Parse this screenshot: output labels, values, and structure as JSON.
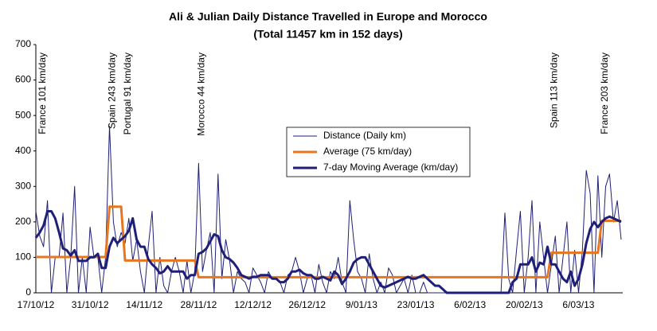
{
  "chart_data": {
    "type": "line",
    "title": "Ali & Julian Daily Distance Travelled in Europe and Morocco",
    "subtitle": "(Total 11457 km in 152 days)",
    "categories": [
      "17/10/12",
      null,
      null,
      null,
      null,
      null,
      null,
      null,
      null,
      null,
      null,
      null,
      null,
      null,
      "31/10/12",
      null,
      null,
      null,
      null,
      null,
      null,
      null,
      null,
      null,
      null,
      null,
      null,
      null,
      "14/11/12",
      null,
      null,
      null,
      null,
      null,
      null,
      null,
      null,
      null,
      null,
      null,
      null,
      null,
      "28/11/12",
      null,
      null,
      null,
      null,
      null,
      null,
      null,
      null,
      null,
      null,
      null,
      null,
      null,
      "12/12/12",
      null,
      null,
      null,
      null,
      null,
      null,
      null,
      null,
      null,
      null,
      null,
      null,
      null,
      "26/12/12",
      null,
      null,
      null,
      null,
      null,
      null,
      null,
      null,
      null,
      null,
      null,
      null,
      null,
      "9/01/13",
      null,
      null,
      null,
      null,
      null,
      null,
      null,
      null,
      null,
      null,
      null,
      null,
      null,
      "23/01/13",
      null,
      null,
      null,
      null,
      null,
      null,
      null,
      null,
      null,
      null,
      null,
      null,
      null,
      "6/02/13",
      null,
      null,
      null,
      null,
      null,
      null,
      null,
      null,
      null,
      null,
      null,
      null,
      null,
      "20/02/13",
      null,
      null,
      null,
      null,
      null,
      null,
      null,
      null,
      null,
      null,
      null,
      null,
      null,
      "6/03/13",
      null,
      null,
      null,
      null,
      null,
      null,
      null,
      null,
      null,
      null,
      null
    ],
    "series": [
      {
        "name": "Distance (Daily km)",
        "color": "#1f1f78",
        "width": 1,
        "values": [
          230,
          160,
          130,
          260,
          0,
          100,
          100,
          225,
          0,
          100,
          300,
          0,
          100,
          0,
          185,
          100,
          100,
          0,
          100,
          470,
          200,
          130,
          170,
          140,
          210,
          90,
          150,
          60,
          0,
          130,
          230,
          0,
          100,
          20,
          0,
          60,
          100,
          60,
          0,
          90,
          0,
          60,
          365,
          60,
          120,
          170,
          0,
          335,
          40,
          150,
          90,
          0,
          60,
          40,
          30,
          0,
          70,
          50,
          30,
          0,
          60,
          40,
          40,
          30,
          0,
          50,
          60,
          100,
          60,
          0,
          40,
          50,
          0,
          80,
          30,
          0,
          60,
          40,
          100,
          30,
          0,
          260,
          150,
          60,
          40,
          0,
          110,
          40,
          0,
          30,
          0,
          70,
          50,
          0,
          20,
          40,
          0,
          50,
          0,
          0,
          30,
          0,
          0,
          0,
          0,
          0,
          0,
          0,
          0,
          0,
          0,
          0,
          0,
          0,
          0,
          0,
          0,
          0,
          0,
          0,
          0,
          225,
          40,
          0,
          120,
          230,
          0,
          100,
          260,
          0,
          200,
          100,
          0,
          80,
          160,
          0,
          100,
          200,
          0,
          120,
          0,
          120,
          345,
          280,
          0,
          330,
          100,
          300,
          335,
          200,
          260,
          150
        ]
      },
      {
        "name": "Average (75 km/day)",
        "color": "#e8761e",
        "width": 3,
        "values": [
          101,
          101,
          101,
          101,
          101,
          101,
          101,
          101,
          101,
          101,
          101,
          101,
          101,
          101,
          101,
          101,
          101,
          101,
          101,
          243,
          243,
          243,
          243,
          91,
          91,
          91,
          91,
          91,
          91,
          91,
          91,
          91,
          91,
          91,
          91,
          91,
          91,
          91,
          91,
          91,
          91,
          91,
          44,
          44,
          44,
          44,
          44,
          44,
          44,
          44,
          44,
          44,
          44,
          44,
          44,
          44,
          44,
          44,
          44,
          44,
          44,
          44,
          44,
          44,
          44,
          44,
          44,
          44,
          44,
          44,
          44,
          44,
          44,
          44,
          44,
          44,
          44,
          44,
          44,
          44,
          44,
          44,
          44,
          44,
          44,
          44,
          44,
          44,
          44,
          44,
          44,
          44,
          44,
          44,
          44,
          44,
          44,
          44,
          44,
          44,
          44,
          44,
          44,
          44,
          44,
          44,
          44,
          44,
          44,
          44,
          44,
          44,
          44,
          44,
          44,
          44,
          44,
          44,
          44,
          44,
          44,
          44,
          44,
          44,
          44,
          44,
          44,
          44,
          44,
          44,
          44,
          44,
          44,
          113,
          113,
          113,
          113,
          113,
          113,
          113,
          113,
          113,
          113,
          113,
          113,
          113,
          203,
          203,
          203,
          203,
          203,
          203
        ]
      },
      {
        "name": "7-day Moving Average (km/day)",
        "color": "#1f1f78",
        "width": 3,
        "values": [
          155,
          170,
          190,
          230,
          230,
          210,
          170,
          125,
          120,
          105,
          120,
          90,
          90,
          90,
          100,
          100,
          110,
          70,
          70,
          130,
          155,
          140,
          150,
          160,
          175,
          210,
          150,
          130,
          130,
          95,
          80,
          70,
          55,
          60,
          75,
          60,
          60,
          60,
          60,
          40,
          50,
          50,
          110,
          115,
          125,
          145,
          165,
          160,
          120,
          100,
          95,
          85,
          70,
          50,
          45,
          40,
          45,
          45,
          50,
          50,
          50,
          40,
          40,
          30,
          30,
          40,
          60,
          60,
          65,
          55,
          50,
          50,
          40,
          40,
          45,
          40,
          35,
          60,
          50,
          25,
          40,
          60,
          85,
          95,
          100,
          100,
          80,
          60,
          40,
          20,
          15,
          20,
          25,
          30,
          35,
          40,
          45,
          40,
          40,
          45,
          50,
          40,
          30,
          20,
          20,
          10,
          0,
          0,
          0,
          0,
          0,
          0,
          0,
          0,
          0,
          0,
          0,
          0,
          0,
          0,
          0,
          0,
          0,
          30,
          40,
          80,
          80,
          80,
          100,
          60,
          85,
          80,
          130,
          80,
          80,
          60,
          40,
          30,
          60,
          20,
          40,
          80,
          140,
          180,
          200,
          185,
          200,
          210,
          215,
          210,
          205,
          200
        ]
      }
    ],
    "annotations": [
      "France 101 km/day",
      "Spain 243 km/day",
      "Portugal 91 km/day",
      "Morocco 44 km/day",
      "Spain 113 km/day",
      "France 203 km/day"
    ],
    "ylim": [
      0,
      700
    ],
    "yticks": [
      0,
      100,
      200,
      300,
      400,
      500,
      600,
      700
    ],
    "grid": false
  }
}
